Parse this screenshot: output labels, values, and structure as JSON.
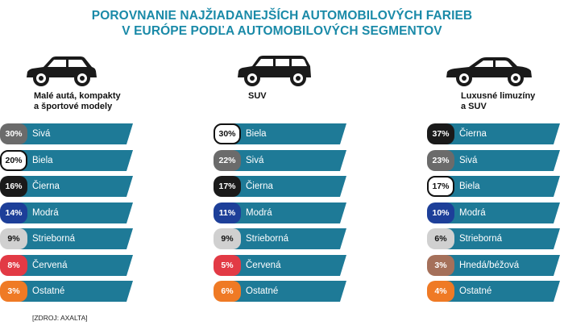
{
  "title": {
    "line1": "POROVNANIE NAJŽIADANEJŠÍCH AUTOMOBILOVÝCH FARIEB",
    "line2": "V EURÓPE PODĽA AUTOMOBILOVÝCH SEGMENTOV"
  },
  "source": "[ZDROJ: AXALTA]",
  "colors": {
    "title": "#1a8aa8",
    "bar": "#1e7a97",
    "car": "#1a1a1a"
  },
  "chart_data": [
    {
      "type": "table",
      "segment_line1": "Malé autá, kompakty",
      "segment_line2": "a športové modely",
      "car_icon": "hatchback-car-icon",
      "rows": [
        {
          "pct": "30%",
          "value": 30,
          "label": "Sivá",
          "swatch": "#6b6b6b"
        },
        {
          "pct": "20%",
          "value": 20,
          "label": "Biela",
          "swatch": "#ffffff"
        },
        {
          "pct": "16%",
          "value": 16,
          "label": "Čierna",
          "swatch": "#1a1a1a"
        },
        {
          "pct": "14%",
          "value": 14,
          "label": "Modrá",
          "swatch": "#1d3f99"
        },
        {
          "pct": "9%",
          "value": 9,
          "label": "Strieborná",
          "swatch": "#d0d0d0"
        },
        {
          "pct": "8%",
          "value": 8,
          "label": "Červená",
          "swatch": "#e23a45"
        },
        {
          "pct": "3%",
          "value": 3,
          "label": "Ostatné",
          "swatch": "#ef7a25"
        }
      ]
    },
    {
      "type": "table",
      "segment_line1": "SUV",
      "segment_line2": "",
      "car_icon": "suv-car-icon",
      "rows": [
        {
          "pct": "30%",
          "value": 30,
          "label": "Biela",
          "swatch": "#ffffff"
        },
        {
          "pct": "22%",
          "value": 22,
          "label": "Sivá",
          "swatch": "#6b6b6b"
        },
        {
          "pct": "17%",
          "value": 17,
          "label": "Čierna",
          "swatch": "#1a1a1a"
        },
        {
          "pct": "11%",
          "value": 11,
          "label": "Modrá",
          "swatch": "#1d3f99"
        },
        {
          "pct": "9%",
          "value": 9,
          "label": "Strieborná",
          "swatch": "#d0d0d0"
        },
        {
          "pct": "5%",
          "value": 5,
          "label": "Červená",
          "swatch": "#e23a45"
        },
        {
          "pct": "6%",
          "value": 6,
          "label": "Ostatné",
          "swatch": "#ef7a25"
        }
      ]
    },
    {
      "type": "table",
      "segment_line1": "Luxusné limuzíny",
      "segment_line2": "a SUV",
      "car_icon": "sedan-car-icon",
      "rows": [
        {
          "pct": "37%",
          "value": 37,
          "label": "Čierna",
          "swatch": "#1a1a1a"
        },
        {
          "pct": "23%",
          "value": 23,
          "label": "Sivá",
          "swatch": "#6b6b6b"
        },
        {
          "pct": "17%",
          "value": 17,
          "label": "Biela",
          "swatch": "#ffffff"
        },
        {
          "pct": "10%",
          "value": 10,
          "label": "Modrá",
          "swatch": "#1d3f99"
        },
        {
          "pct": "6%",
          "value": 6,
          "label": "Strieborná",
          "swatch": "#d0d0d0"
        },
        {
          "pct": "3%",
          "value": 3,
          "label": "Hnedá/béžová",
          "swatch": "#a5705a"
        },
        {
          "pct": "4%",
          "value": 4,
          "label": "Ostatné",
          "swatch": "#ef7a25"
        }
      ]
    }
  ]
}
